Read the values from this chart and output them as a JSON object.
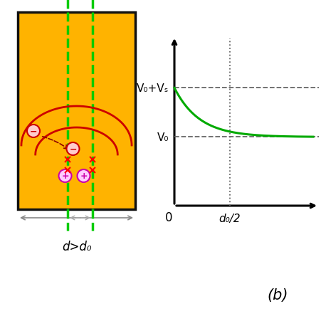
{
  "bg_color": "#ffffff",
  "nanowire_fill": "#FFB300",
  "nanowire_edge": "#111111",
  "green_color": "#00cc00",
  "red_color": "#cc0000",
  "magenta_color": "#cc00aa",
  "curve_color": "#00aa00",
  "dashed_color": "#666666",
  "label_d": "d>d₀",
  "label_b": "(b)",
  "V0_label": "V₀",
  "V0Vs_label": "V₀+Vₛ",
  "d0_label": "d₀/2",
  "zero_label": "0"
}
